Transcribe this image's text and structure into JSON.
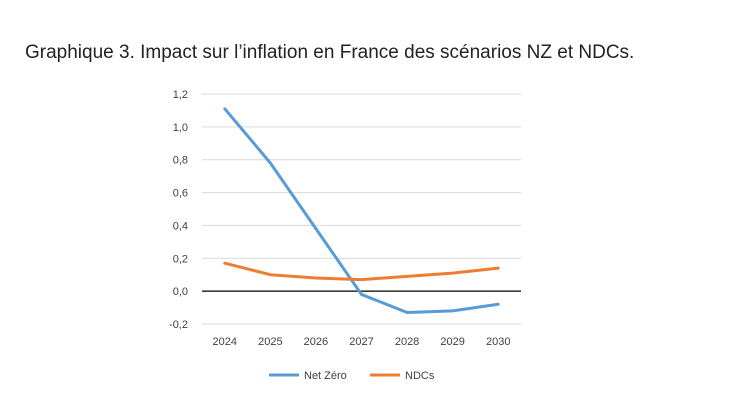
{
  "chart_data": {
    "type": "line",
    "title": "Graphique 3. Impact sur l’inflation en France des scénarios NZ et NDCs.",
    "categories": [
      "2024",
      "2025",
      "2026",
      "2027",
      "2028",
      "2029",
      "2030"
    ],
    "series": [
      {
        "name": "Net Zéro",
        "color": "#5b9bd5",
        "values": [
          1.11,
          0.78,
          0.38,
          -0.02,
          -0.13,
          -0.12,
          -0.08
        ]
      },
      {
        "name": "NDCs",
        "color": "#ed7d31",
        "values": [
          0.17,
          0.1,
          0.08,
          0.07,
          0.09,
          0.11,
          0.14
        ]
      }
    ],
    "y_ticks": [
      "1,2",
      "1,0",
      "0,8",
      "0,6",
      "0,4",
      "0,2",
      "0,0",
      "-0,2"
    ],
    "ylim": [
      -0.2,
      1.2
    ],
    "xlabel": "",
    "ylabel": "",
    "legend_position": "bottom",
    "zero_line_color": "#000000",
    "grid_color": "#d9d9d9"
  }
}
